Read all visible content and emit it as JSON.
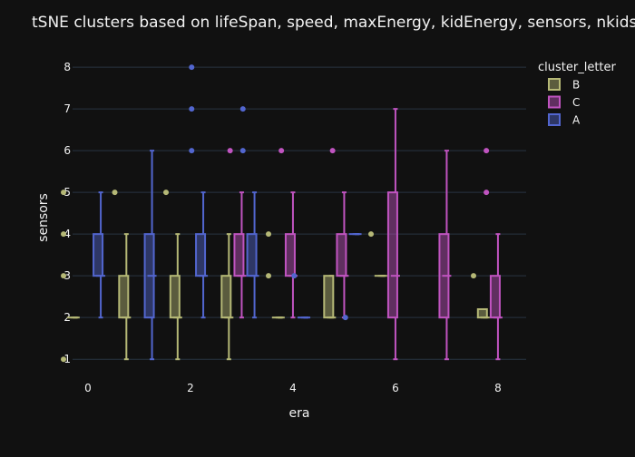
{
  "chart_data": {
    "type": "box",
    "title": "tSNE clusters based on lifeSpan, speed, maxEnergy, kidEnergy, sensors, nkids",
    "xlabel": "era",
    "ylabel": "sensors",
    "xlim": [
      -0.3,
      8.55
    ],
    "ylim": [
      0.7,
      8.35
    ],
    "x_ticks": [
      0,
      2,
      4,
      6,
      8
    ],
    "y_ticks": [
      1,
      2,
      3,
      4,
      5,
      6,
      7,
      8
    ],
    "grid": true,
    "legend": {
      "title": "cluster_letter",
      "placement": "top-right"
    },
    "series": [
      {
        "name": "B",
        "color": "#b5b876",
        "boxes": [
          {
            "x": -0.25,
            "q1": 2,
            "median": 2,
            "q3": 2,
            "low": 2,
            "high": 2,
            "outliers": [
              1,
              3,
              4,
              5
            ]
          },
          {
            "x": 0.75,
            "q1": 2,
            "median": 2,
            "q3": 3,
            "low": 1,
            "high": 4,
            "outliers": [
              5
            ]
          },
          {
            "x": 1.75,
            "q1": 2,
            "median": 2,
            "q3": 3,
            "low": 1,
            "high": 4,
            "outliers": [
              5
            ]
          },
          {
            "x": 2.75,
            "q1": 2,
            "median": 2,
            "q3": 3,
            "low": 1,
            "high": 4,
            "outliers": []
          },
          {
            "x": 3.75,
            "q1": 2,
            "median": 2,
            "q3": 2,
            "low": 2,
            "high": 2,
            "outliers": [
              3,
              4
            ]
          },
          {
            "x": 4.75,
            "q1": 2,
            "median": 2,
            "q3": 3,
            "low": 2,
            "high": 3,
            "outliers": []
          },
          {
            "x": 5.75,
            "q1": 3,
            "median": 3,
            "q3": 3,
            "low": 3,
            "high": 3,
            "outliers": [
              4
            ]
          },
          {
            "x": 7.75,
            "q1": 2,
            "median": 2,
            "q3": 2.2,
            "low": 2,
            "high": 2.2,
            "outliers": [
              3
            ]
          }
        ]
      },
      {
        "name": "C",
        "color": "#c054c0",
        "boxes": [
          {
            "x": 3.0,
            "q1": 3,
            "median": 3,
            "q3": 4,
            "low": 2,
            "high": 5,
            "outliers": [
              6
            ]
          },
          {
            "x": 4.0,
            "q1": 3,
            "median": 3,
            "q3": 4,
            "low": 2,
            "high": 5,
            "outliers": [
              6
            ]
          },
          {
            "x": 5.0,
            "q1": 3,
            "median": 3,
            "q3": 4,
            "low": 2,
            "high": 5,
            "outliers": [
              6
            ]
          },
          {
            "x": 6.0,
            "q1": 2,
            "median": 3,
            "q3": 5,
            "low": 1,
            "high": 7,
            "outliers": []
          },
          {
            "x": 7.0,
            "q1": 2,
            "median": 3,
            "q3": 4,
            "low": 1,
            "high": 6,
            "outliers": []
          },
          {
            "x": 8.0,
            "q1": 2,
            "median": 2,
            "q3": 3,
            "low": 1,
            "high": 4,
            "outliers": [
              5,
              6
            ]
          }
        ]
      },
      {
        "name": "A",
        "color": "#5266cf",
        "boxes": [
          {
            "x": 0.25,
            "q1": 3,
            "median": 3,
            "q3": 4,
            "low": 2,
            "high": 5,
            "outliers": []
          },
          {
            "x": 1.25,
            "q1": 2,
            "median": 3,
            "q3": 4,
            "low": 1,
            "high": 6,
            "outliers": []
          },
          {
            "x": 2.25,
            "q1": 3,
            "median": 3,
            "q3": 4,
            "low": 2,
            "high": 5,
            "outliers": [
              6,
              7,
              8
            ]
          },
          {
            "x": 3.25,
            "q1": 3,
            "median": 3,
            "q3": 4,
            "low": 2,
            "high": 5,
            "outliers": [
              6,
              7
            ]
          },
          {
            "x": 4.25,
            "q1": 2,
            "median": 2,
            "q3": 2,
            "low": 2,
            "high": 2,
            "outliers": [
              3
            ]
          },
          {
            "x": 5.25,
            "q1": 4,
            "median": 4,
            "q3": 4,
            "low": 4,
            "high": 4,
            "outliers": [
              2
            ]
          }
        ]
      }
    ]
  }
}
